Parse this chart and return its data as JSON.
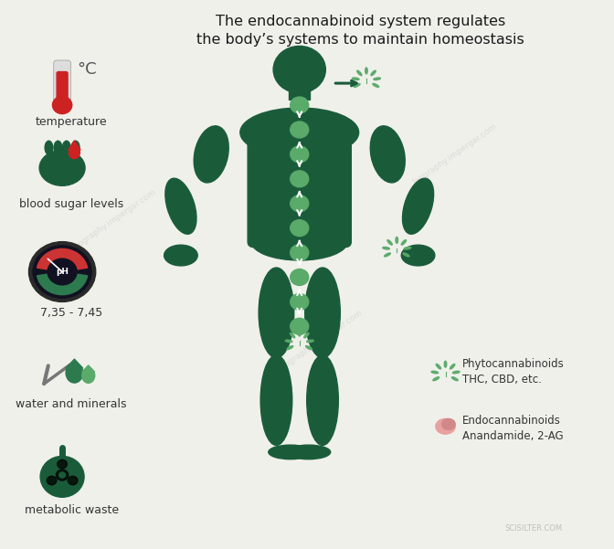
{
  "bg_color": "#f0f0eb",
  "title_line1": "The endocannabinoid system regulates",
  "title_line2": "the body’s systems to maintain homeostasis",
  "title_fontsize": 11.5,
  "title_color": "#1a1a1a",
  "dark_green": "#1a5c3a",
  "medium_green": "#2d7a4f",
  "light_green": "#5aaa6a",
  "red_color": "#cc2222",
  "pink_color": "#e8a0a0",
  "label_text_color": "#333333",
  "label_fontsize": 9,
  "degree_symbol": "°C",
  "left_items": [
    "temperature",
    "blood sugar levels",
    "7,35 - 7,45",
    "water and minerals",
    "metabolic waste"
  ],
  "right_item1_text": "Phytocannabinoids\nTHC, CBD, etc.",
  "right_item2_text": "Endocannabinoids\nAnandamide, 2-AG",
  "watermark": "biography.impergar.com",
  "watermark2": "SCISILTER.COM"
}
